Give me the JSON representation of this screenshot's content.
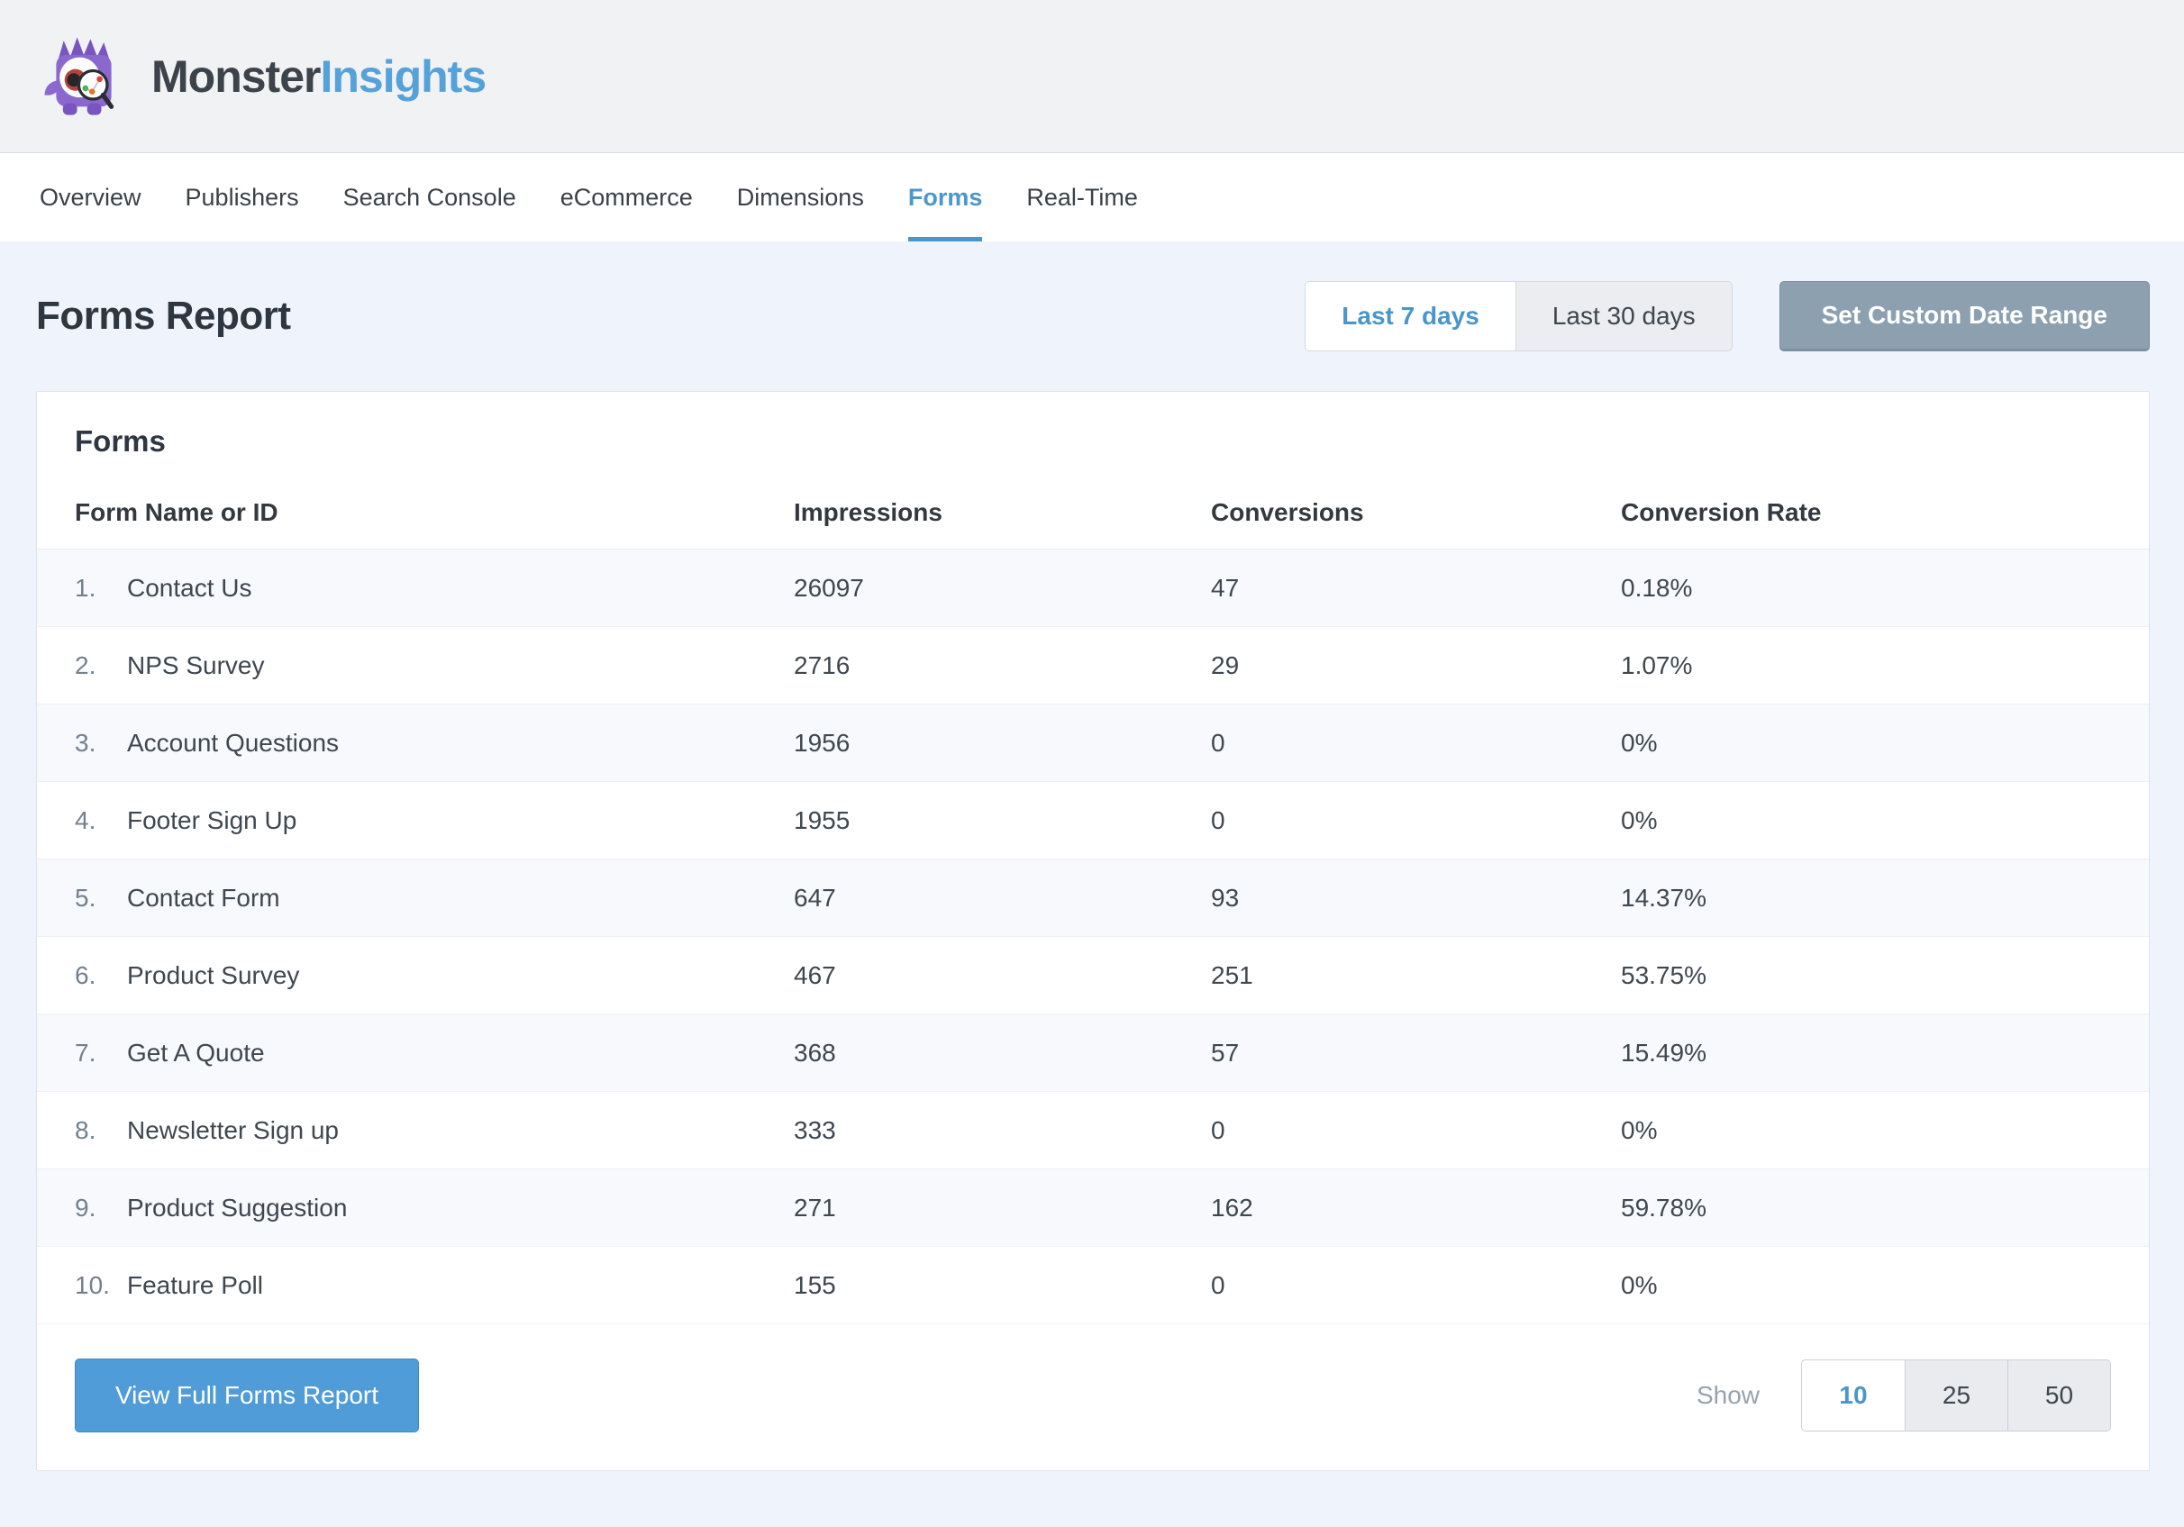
{
  "brand": {
    "name_dark": "Monster",
    "name_accent": "Insights"
  },
  "nav": {
    "items": [
      {
        "label": "Overview",
        "active": false
      },
      {
        "label": "Publishers",
        "active": false
      },
      {
        "label": "Search Console",
        "active": false
      },
      {
        "label": "eCommerce",
        "active": false
      },
      {
        "label": "Dimensions",
        "active": false
      },
      {
        "label": "Forms",
        "active": true
      },
      {
        "label": "Real-Time",
        "active": false
      }
    ]
  },
  "page": {
    "title": "Forms Report"
  },
  "date_range": {
    "options": [
      {
        "label": "Last 7 days",
        "active": true
      },
      {
        "label": "Last 30 days",
        "active": false
      }
    ],
    "custom_label": "Set Custom Date Range"
  },
  "card": {
    "title": "Forms",
    "columns": [
      "Form Name or ID",
      "Impressions",
      "Conversions",
      "Conversion Rate"
    ],
    "rows": [
      {
        "rank": "1.",
        "name": "Contact Us",
        "impressions": "26097",
        "conversions": "47",
        "rate": "0.18%"
      },
      {
        "rank": "2.",
        "name": "NPS Survey",
        "impressions": "2716",
        "conversions": "29",
        "rate": "1.07%"
      },
      {
        "rank": "3.",
        "name": "Account Questions",
        "impressions": "1956",
        "conversions": "0",
        "rate": "0%"
      },
      {
        "rank": "4.",
        "name": "Footer Sign Up",
        "impressions": "1955",
        "conversions": "0",
        "rate": "0%"
      },
      {
        "rank": "5.",
        "name": "Contact Form",
        "impressions": "647",
        "conversions": "93",
        "rate": "14.37%"
      },
      {
        "rank": "6.",
        "name": "Product Survey",
        "impressions": "467",
        "conversions": "251",
        "rate": "53.75%"
      },
      {
        "rank": "7.",
        "name": "Get A Quote",
        "impressions": "368",
        "conversions": "57",
        "rate": "15.49%"
      },
      {
        "rank": "8.",
        "name": "Newsletter Sign up",
        "impressions": "333",
        "conversions": "0",
        "rate": "0%"
      },
      {
        "rank": "9.",
        "name": "Product Suggestion",
        "impressions": "271",
        "conversions": "162",
        "rate": "59.78%"
      },
      {
        "rank": "10.",
        "name": "Feature Poll",
        "impressions": "155",
        "conversions": "0",
        "rate": "0%"
      }
    ]
  },
  "footer": {
    "view_full_label": "View Full Forms Report",
    "show_label": "Show",
    "page_sizes": [
      "10",
      "25",
      "50"
    ],
    "active_page_size": "10"
  },
  "colors": {
    "accent_blue": "#4a96cc",
    "brand_navy": "#3c434a",
    "brand_blue": "#55a1da",
    "slate_button": "#8da0b0",
    "primary_button": "#4f9cd8",
    "page_background": "#eff3fb",
    "row_stripe": "#f7f9fc"
  },
  "icons": {
    "logo": "monster-mascot-with-magnifier-icon"
  }
}
